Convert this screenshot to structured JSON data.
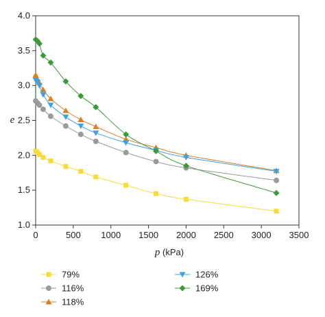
{
  "chart_data": {
    "type": "line",
    "xlabel_var": "p",
    "xlabel_unit": " (kPa)",
    "ylabel": "e",
    "xlim": [
      0,
      3500
    ],
    "ylim": [
      1.0,
      4.0
    ],
    "x_ticks": [
      0,
      500,
      1000,
      1500,
      2000,
      2500,
      3000,
      3500
    ],
    "y_ticks": [
      "1.0",
      "1.5",
      "2.0",
      "2.5",
      "3.0",
      "3.5",
      "4.0"
    ],
    "grid": false,
    "legend_position": "bottom",
    "series": [
      {
        "name": "79%",
        "color": "#f5dc3c",
        "marker": "square",
        "x": [
          0,
          25,
          50,
          100,
          200,
          400,
          600,
          800,
          1200,
          1600,
          2000,
          3200
        ],
        "y": [
          2.06,
          2.04,
          2.01,
          1.97,
          1.92,
          1.84,
          1.77,
          1.69,
          1.57,
          1.45,
          1.37,
          1.2
        ]
      },
      {
        "name": "116%",
        "color": "#9a9a9a",
        "marker": "circle",
        "x": [
          0,
          25,
          50,
          100,
          200,
          400,
          600,
          800,
          1200,
          1600,
          2000,
          3200
        ],
        "y": [
          2.78,
          2.75,
          2.72,
          2.66,
          2.56,
          2.42,
          2.3,
          2.2,
          2.04,
          1.91,
          1.82,
          1.64
        ]
      },
      {
        "name": "118%",
        "color": "#e07b20",
        "marker": "triangle-up",
        "x": [
          0,
          25,
          50,
          100,
          200,
          400,
          600,
          800,
          1200,
          1600,
          2000,
          3200
        ],
        "y": [
          3.15,
          3.09,
          3.04,
          2.94,
          2.81,
          2.64,
          2.51,
          2.41,
          2.23,
          2.11,
          2.0,
          1.78
        ]
      },
      {
        "name": "126%",
        "color": "#3ba3e0",
        "marker": "triangle-down",
        "x": [
          0,
          25,
          50,
          100,
          200,
          400,
          600,
          800,
          1200,
          1600,
          2000,
          3200
        ],
        "y": [
          3.08,
          3.05,
          3.0,
          2.87,
          2.72,
          2.55,
          2.42,
          2.32,
          2.18,
          2.07,
          1.97,
          1.77
        ]
      },
      {
        "name": "169%",
        "color": "#3c9a3c",
        "marker": "diamond",
        "x": [
          0,
          25,
          50,
          100,
          200,
          400,
          600,
          800,
          1200,
          1600,
          2000,
          3200
        ],
        "y": [
          3.66,
          3.64,
          3.6,
          3.43,
          3.33,
          3.06,
          2.85,
          2.69,
          2.3,
          2.06,
          1.85,
          1.46
        ]
      }
    ]
  }
}
